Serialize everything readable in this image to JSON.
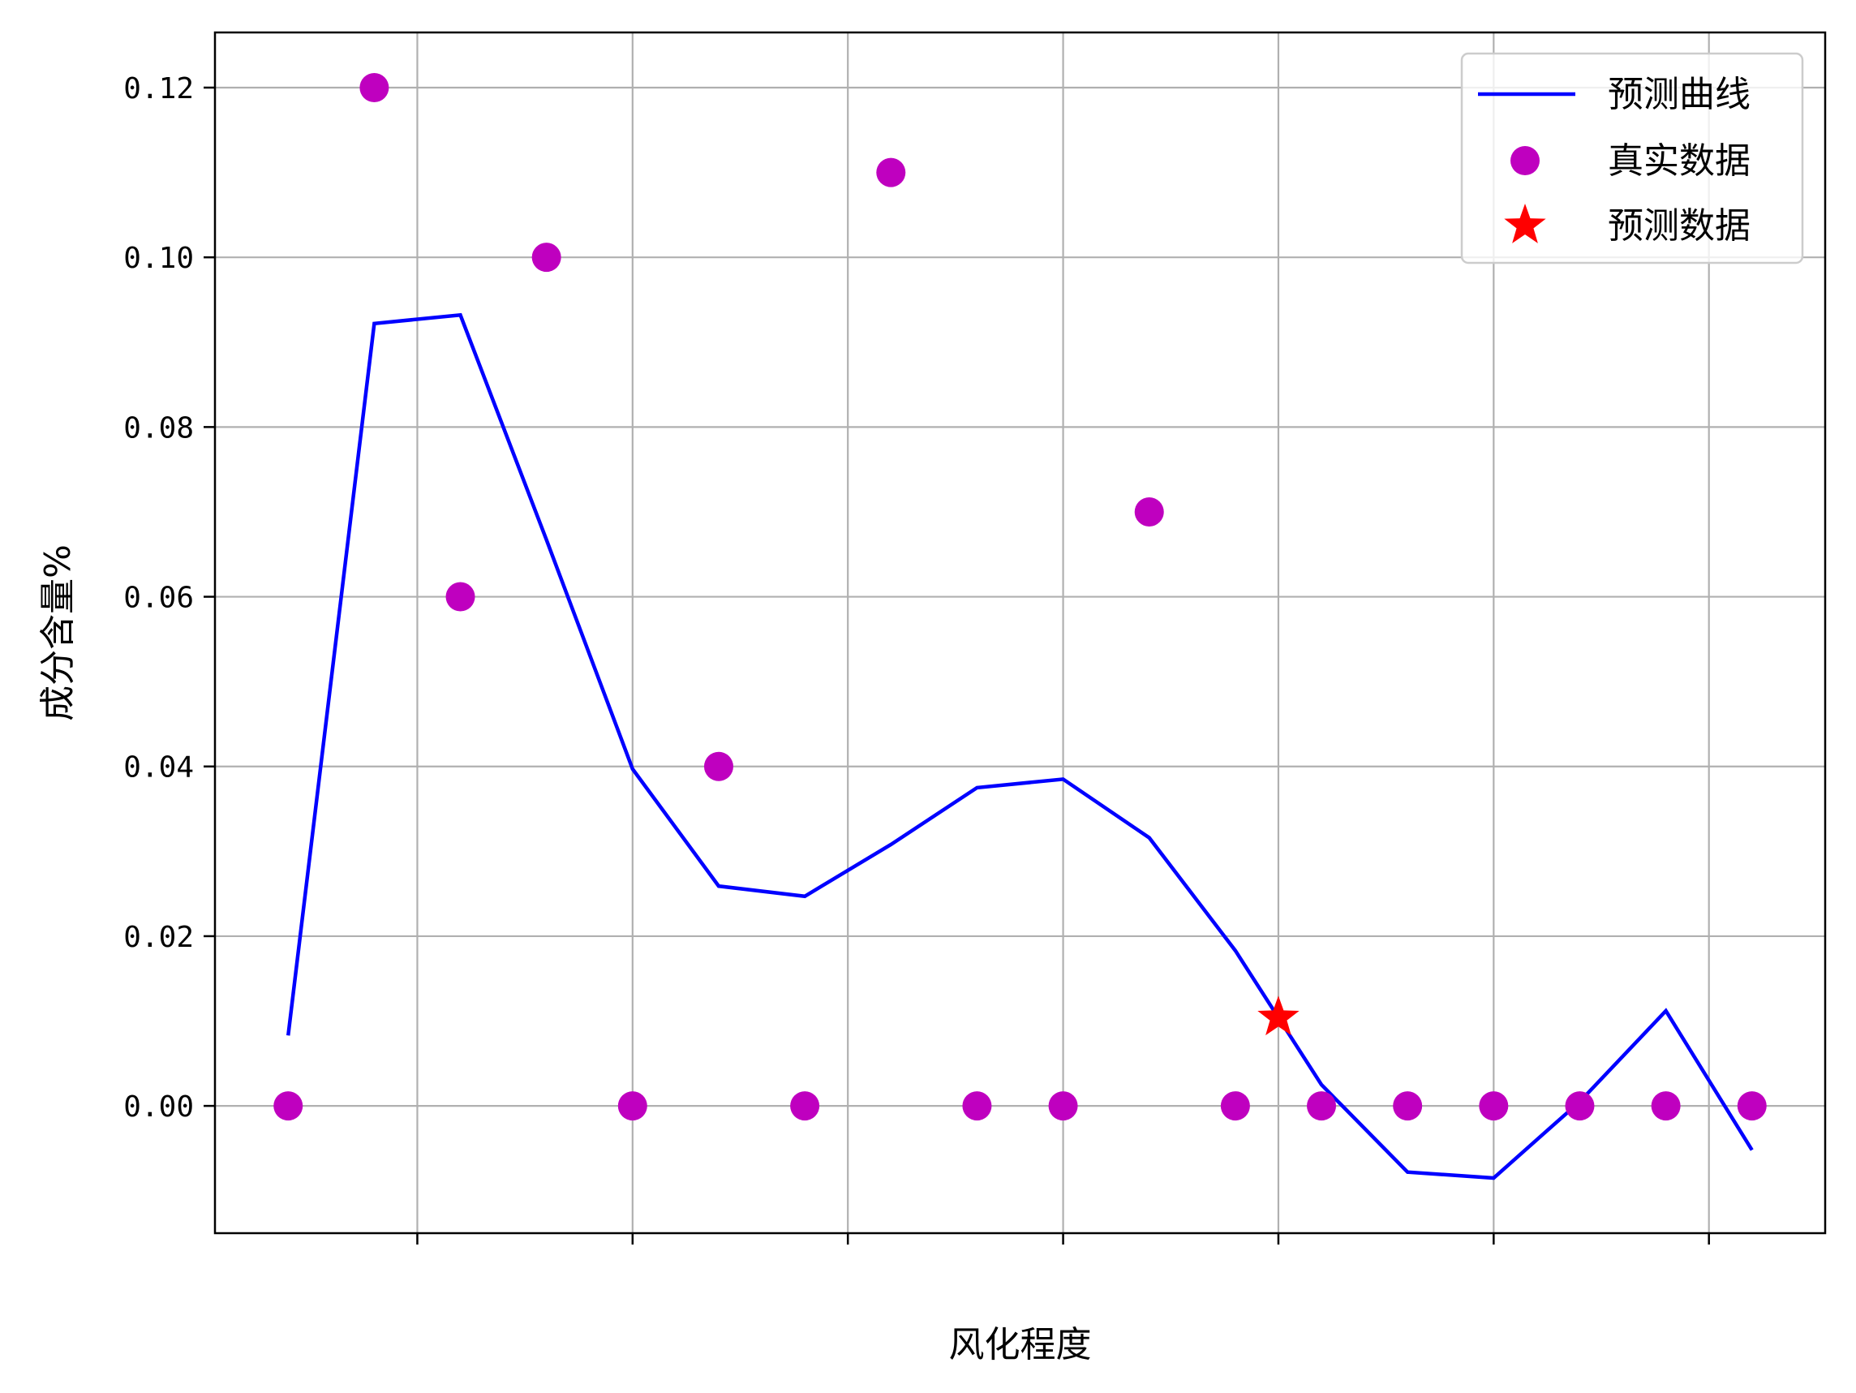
{
  "chart_data": {
    "type": "line",
    "title": "",
    "xlabel": "风化程度",
    "ylabel": "成分含量%",
    "xlim": [
      -0.85,
      17.85
    ],
    "ylim": [
      -0.015,
      0.1265
    ],
    "x_ticks": [
      1.5,
      4,
      6.5,
      9,
      11.5,
      14,
      16.5
    ],
    "y_ticks": [
      0.0,
      0.02,
      0.04,
      0.06,
      0.08,
      0.1,
      0.12
    ],
    "y_tick_labels": [
      "0.00",
      "0.02",
      "0.04",
      "0.06",
      "0.08",
      "0.10",
      "0.12"
    ],
    "grid": true,
    "legend_position": "top-right",
    "series": [
      {
        "name": "预测曲线",
        "kind": "line",
        "color": "#0000ff",
        "x": [
          0,
          1,
          2,
          3,
          4,
          5,
          6,
          7,
          8,
          9,
          10,
          11,
          12,
          13,
          14,
          15,
          16,
          17
        ],
        "values": [
          0.0083,
          0.0922,
          0.0932,
          0.0667,
          0.0397,
          0.0259,
          0.0247,
          0.0308,
          0.0375,
          0.0385,
          0.0316,
          0.0183,
          0.0025,
          -0.0078,
          -0.0085,
          0.0005,
          0.0112,
          -0.0052
        ]
      },
      {
        "name": "真实数据",
        "kind": "scatter",
        "marker": "circle",
        "color": "#bf00bf",
        "x": [
          0,
          1,
          2,
          3,
          4,
          5,
          6,
          7,
          8,
          9,
          10,
          11,
          12,
          13,
          14,
          15,
          16,
          17
        ],
        "values": [
          0,
          0.12,
          0.06,
          0.1,
          0,
          0.04,
          0,
          0.11,
          0,
          0,
          0.07,
          0,
          0,
          0,
          0,
          0,
          0,
          0
        ]
      },
      {
        "name": "预测数据",
        "kind": "scatter",
        "marker": "star",
        "color": "#ff0000",
        "x": [
          11.5
        ],
        "values": [
          0.0104
        ]
      }
    ]
  }
}
